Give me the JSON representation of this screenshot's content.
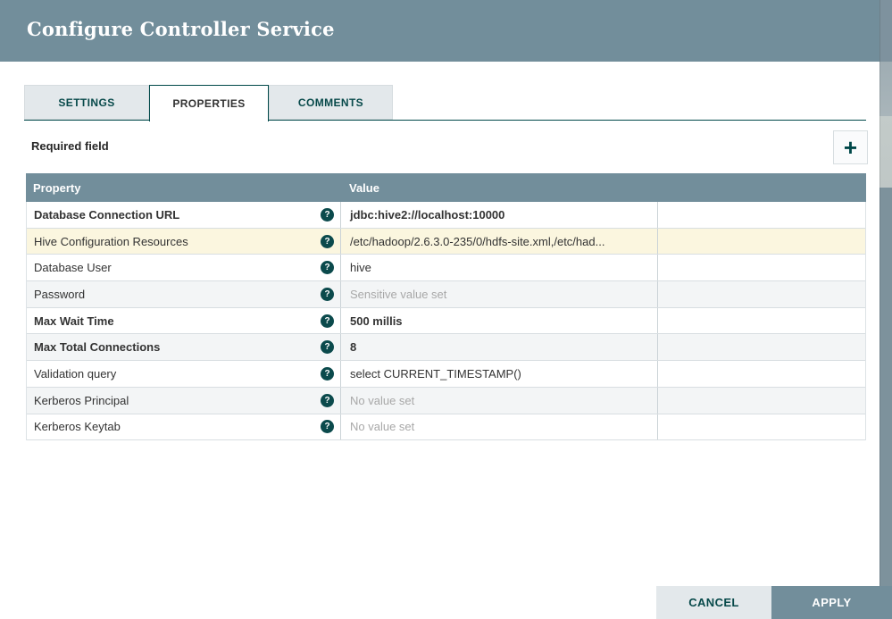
{
  "window": {
    "title": "Configure Controller Service"
  },
  "tabs": [
    {
      "label": "SETTINGS",
      "active": false
    },
    {
      "label": "PROPERTIES",
      "active": true
    },
    {
      "label": "COMMENTS",
      "active": false
    }
  ],
  "properties_panel": {
    "required_field_label": "Required field"
  },
  "icons": {
    "add": "+",
    "help": "?"
  },
  "table": {
    "columns": [
      "Property",
      "Value"
    ],
    "rows": [
      {
        "property": "Database Connection URL",
        "value": "jdbc:hive2://localhost:10000",
        "bold": true,
        "background": "white",
        "muted": false
      },
      {
        "property": "Hive Configuration Resources",
        "value": "/etc/hadoop/2.6.3.0-235/0/hdfs-site.xml,/etc/had...",
        "bold": false,
        "background": "cream",
        "muted": false
      },
      {
        "property": "Database User",
        "value": "hive",
        "bold": false,
        "background": "white",
        "muted": false
      },
      {
        "property": "Password",
        "value": "Sensitive value set",
        "bold": false,
        "background": "gray",
        "muted": true
      },
      {
        "property": "Max Wait Time",
        "value": "500 millis",
        "bold": true,
        "background": "white",
        "muted": false
      },
      {
        "property": "Max Total Connections",
        "value": "8",
        "bold": true,
        "background": "gray",
        "muted": false
      },
      {
        "property": "Validation query",
        "value": "select CURRENT_TIMESTAMP()",
        "bold": false,
        "background": "white",
        "muted": false
      },
      {
        "property": "Kerberos Principal",
        "value": "No value set",
        "bold": false,
        "background": "gray",
        "muted": true
      },
      {
        "property": "Kerberos Keytab",
        "value": "No value set",
        "bold": false,
        "background": "white",
        "muted": true
      }
    ]
  },
  "footer": {
    "cancel_label": "CANCEL",
    "apply_label": "APPLY"
  },
  "colors": {
    "slate": "#728e9b",
    "teal": "#004849",
    "tab_inactive_bg": "#e3e8eb",
    "modified_row_bg": "#fbf6df",
    "alt_row_bg": "#f3f5f6",
    "muted_text": "#a8a8a8"
  }
}
